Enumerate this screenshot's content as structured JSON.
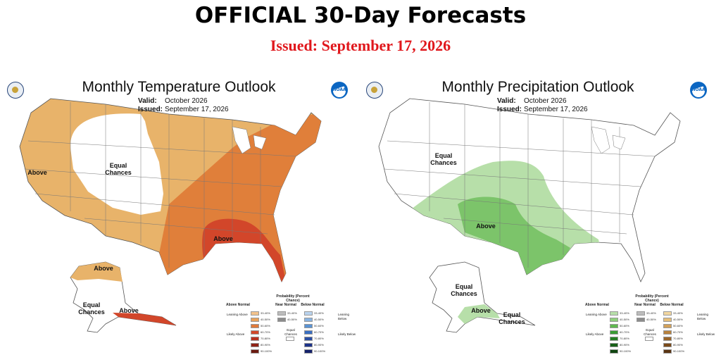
{
  "header": {
    "title": "OFFICIAL 30-Day Forecasts",
    "issued": "Issued: September 17, 2026"
  },
  "temperature_panel": {
    "title": "Monthly Temperature Outlook",
    "valid_label": "Valid:",
    "valid_value": "October 2026",
    "issued_label": "Issued:",
    "issued_value": "September 17, 2026",
    "region_labels": {
      "equal_chances": "Equal Chances",
      "above_west": "Above",
      "above_southeast": "Above",
      "above_alaska": "Above",
      "equal_alaska": "Equal Chances",
      "above_aleutians": "Above"
    },
    "colors": {
      "lean_above": "#e8b36a",
      "above_50": "#e07f3a",
      "above_60": "#d2462a",
      "land": "#ffffff"
    }
  },
  "precipitation_panel": {
    "title": "Monthly Precipitation Outlook",
    "valid_label": "Valid:",
    "valid_value": "October 2026",
    "issued_label": "Issued:",
    "issued_value": "September 17, 2026",
    "region_labels": {
      "equal_chances": "Equal Chances",
      "above_sw": "Above",
      "equal_alaska": "Equal Chances",
      "above_alaska": "Above",
      "equal_se_alaska": "Equal Chances"
    },
    "colors": {
      "lean_above": "#b7dfa9",
      "above_40": "#7cc46a",
      "land": "#ffffff"
    }
  },
  "legend": {
    "title": "Probability (Percent Chance)",
    "ranges": [
      "33-40%",
      "40-50%",
      "50-60%",
      "60-70%",
      "70-80%",
      "80-90%",
      "90-100%"
    ],
    "near_ranges": [
      "33-40%",
      "40-50%"
    ],
    "equal_chances": "Equal Chances",
    "temp": {
      "above_head": "Above Normal",
      "near_head": "Near Normal",
      "below_head": "Below Normal",
      "leaning_above": "Leaning Above",
      "likely_above": "Likely Above",
      "leaning_below": "Leaning Below",
      "likely_below": "Likely Below",
      "above_colors": [
        "#f2c38c",
        "#e8a35c",
        "#e07a3a",
        "#d2482a",
        "#b8311f",
        "#8f2316",
        "#6b1a10"
      ],
      "below_colors": [
        "#b9d3ee",
        "#8ab4e1",
        "#5a93d3",
        "#3a6fc2",
        "#2a4ea4",
        "#1d338a",
        "#14216b"
      ]
    },
    "precip": {
      "above_head": "Above Normal",
      "near_head": "Near Normal",
      "below_head": "Below Normal",
      "leaning_above": "Leaning Above",
      "likely_above": "Likely Above",
      "leaning_below": "Leaning Below",
      "likely_below": "Likely Below",
      "above_colors": [
        "#b7dfa9",
        "#8fd07d",
        "#5fb84f",
        "#3a9c35",
        "#247d23",
        "#175f17",
        "#0f4510"
      ],
      "below_colors": [
        "#f2d7a0",
        "#e6bf7a",
        "#d2a15a",
        "#b8823e",
        "#9a6428",
        "#7a4a1a",
        "#5a3412"
      ]
    },
    "near_colors": [
      "#bdbdbd",
      "#8c8c8c"
    ]
  }
}
